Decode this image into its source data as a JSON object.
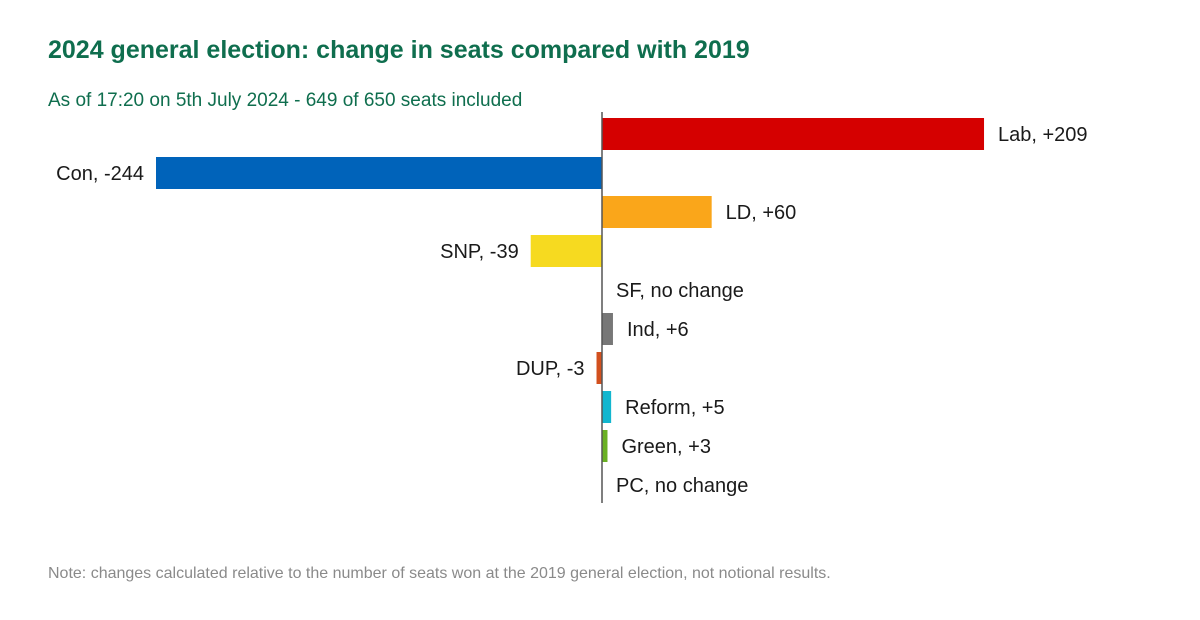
{
  "chart_data": {
    "type": "bar",
    "orientation": "horizontal",
    "title": "2024 general election: change in seats compared with 2019",
    "subtitle": "As of 17:20 on 5th July 2024 - 649 of 650 seats included",
    "note": "Note: changes calculated relative to the number of seats won at the 2019 general election, not notional results.",
    "xlim": [
      -244,
      244
    ],
    "grid": false,
    "legend": "none",
    "categories": [
      "Lab",
      "Con",
      "LD",
      "SNP",
      "SF",
      "Ind",
      "DUP",
      "Reform",
      "Green",
      "PC"
    ],
    "values": [
      209,
      -244,
      60,
      -39,
      0,
      6,
      -3,
      5,
      3,
      0
    ],
    "labels": [
      "Lab, +209",
      "Con, -244",
      "LD, +60",
      "SNP, -39",
      "SF, no change",
      "Ind, +6",
      "DUP, -3",
      "Reform,  +5",
      "Green,  +3",
      "PC, no change"
    ],
    "colors": [
      "#d50000",
      "#0063ba",
      "#faa61a",
      "#f6da20",
      "#326760",
      "#777777",
      "#d2501e",
      "#12b6cf",
      "#6ab023",
      "#13882f"
    ]
  }
}
